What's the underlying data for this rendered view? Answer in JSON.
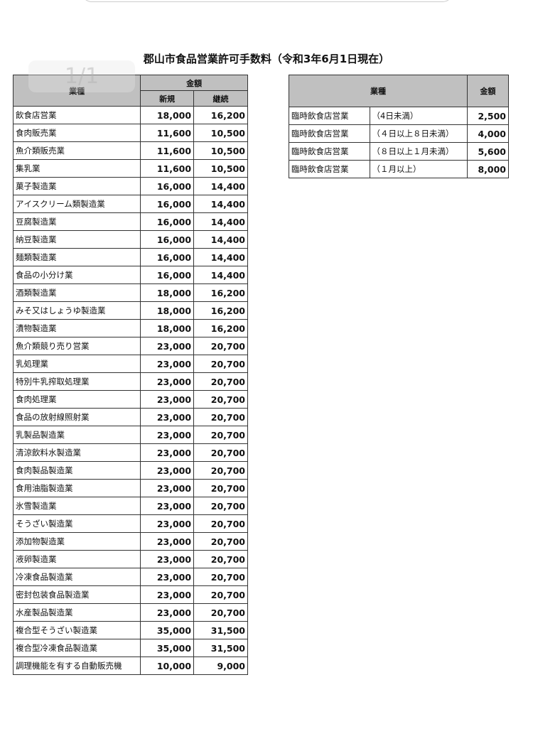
{
  "viewer": {
    "page_indicator": "1/1"
  },
  "title": "郡山市食品営業許可手数料（令和3年6月1日現在）",
  "table1": {
    "header": {
      "type": "業種",
      "amount": "金額",
      "new": "新規",
      "renewal": "継続"
    },
    "rows": [
      [
        "飲食店営業",
        "18,000",
        "16,200"
      ],
      [
        "食肉販売業",
        "11,600",
        "10,500"
      ],
      [
        "魚介類販売業",
        "11,600",
        "10,500"
      ],
      [
        "集乳業",
        "11,600",
        "10,500"
      ],
      [
        "菓子製造業",
        "16,000",
        "14,400"
      ],
      [
        "アイスクリーム類製造業",
        "16,000",
        "14,400"
      ],
      [
        "豆腐製造業",
        "16,000",
        "14,400"
      ],
      [
        "納豆製造業",
        "16,000",
        "14,400"
      ],
      [
        "麺類製造業",
        "16,000",
        "14,400"
      ],
      [
        "食品の小分け業",
        "16,000",
        "14,400"
      ],
      [
        "酒類製造業",
        "18,000",
        "16,200"
      ],
      [
        "みそ又はしょうゆ製造業",
        "18,000",
        "16,200"
      ],
      [
        "漬物製造業",
        "18,000",
        "16,200"
      ],
      [
        "魚介類競り売り営業",
        "23,000",
        "20,700"
      ],
      [
        "乳処理業",
        "23,000",
        "20,700"
      ],
      [
        "特別牛乳搾取処理業",
        "23,000",
        "20,700"
      ],
      [
        "食肉処理業",
        "23,000",
        "20,700"
      ],
      [
        "食品の放射線照射業",
        "23,000",
        "20,700"
      ],
      [
        "乳製品製造業",
        "23,000",
        "20,700"
      ],
      [
        "清涼飲料水製造業",
        "23,000",
        "20,700"
      ],
      [
        "食肉製品製造業",
        "23,000",
        "20,700"
      ],
      [
        "食用油脂製造業",
        "23,000",
        "20,700"
      ],
      [
        "氷雪製造業",
        "23,000",
        "20,700"
      ],
      [
        "そうざい製造業",
        "23,000",
        "20,700"
      ],
      [
        "添加物製造業",
        "23,000",
        "20,700"
      ],
      [
        "液卵製造業",
        "23,000",
        "20,700"
      ],
      [
        "冷凍食品製造業",
        "23,000",
        "20,700"
      ],
      [
        "密封包装食品製造業",
        "23,000",
        "20,700"
      ],
      [
        "水産製品製造業",
        "23,000",
        "20,700"
      ],
      [
        "複合型そうざい製造業",
        "35,000",
        "31,500"
      ],
      [
        "複合型冷凍食品製造業",
        "35,000",
        "31,500"
      ],
      [
        "調理機能を有する自動販売機",
        "10,000",
        "9,000"
      ]
    ]
  },
  "table2": {
    "header": {
      "type": "業種",
      "amount": "金額"
    },
    "rows": [
      [
        "臨時飲食店営業",
        "（4日未満）",
        "2,500"
      ],
      [
        "臨時飲食店営業",
        "（４日以上８日未満）",
        "4,000"
      ],
      [
        "臨時飲食店営業",
        "（８日以上１月未満）",
        "5,600"
      ],
      [
        "臨時飲食店営業",
        "（１月以上）",
        "8,000"
      ]
    ]
  }
}
